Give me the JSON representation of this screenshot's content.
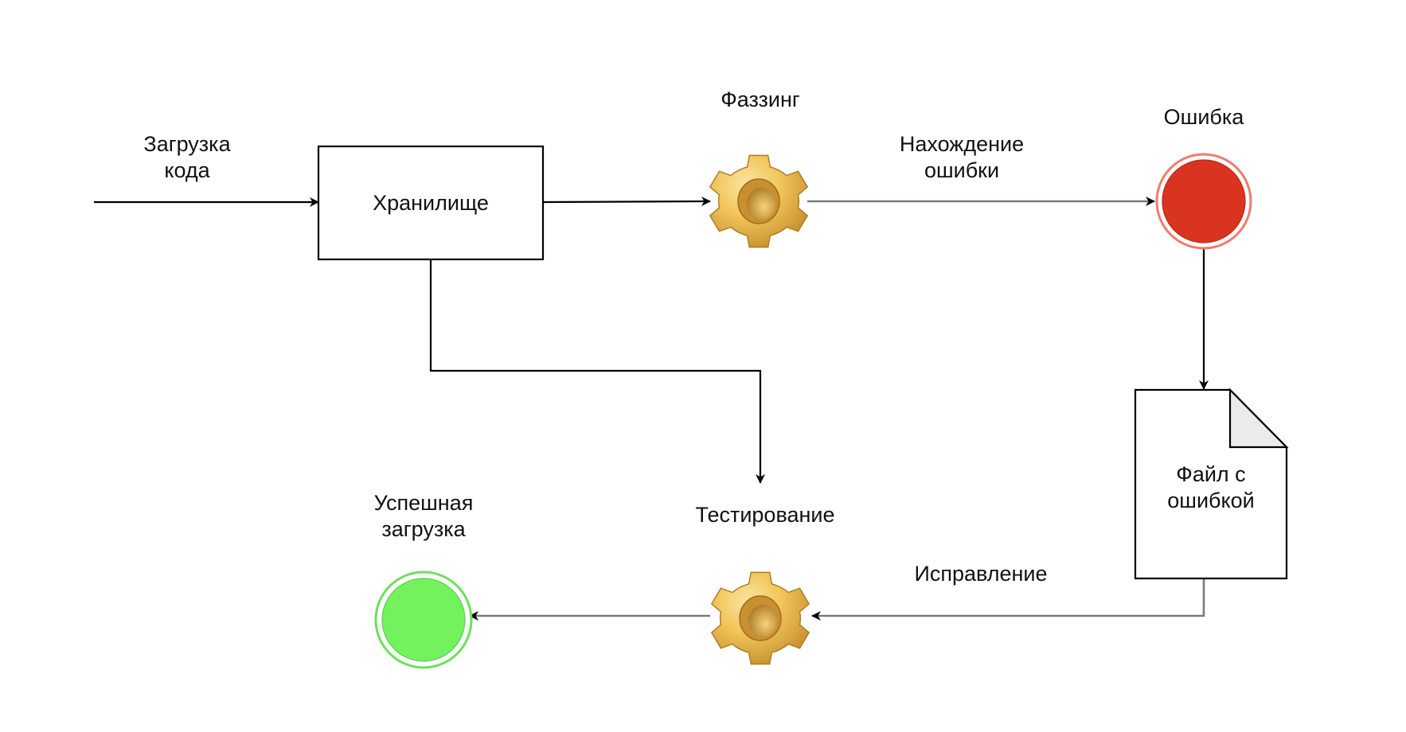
{
  "labels": {
    "upload_line1": "Загрузка",
    "upload_line2": "кода",
    "storage": "Хранилище",
    "fuzzing": "Фаззинг",
    "finding_line1": "Нахождение",
    "finding_line2": "ошибки",
    "error": "Ошибка",
    "file_line1": "Файл с",
    "file_line2": "ошибкой",
    "fix": "Исправление",
    "testing": "Тестирование",
    "success_line1": "Успешная",
    "success_line2": "загрузка"
  },
  "colors": {
    "error_fill": "#d9341f",
    "error_ring": "#f07a70",
    "success_fill": "#74f25e",
    "success_ring": "#6de05a",
    "gear_light": "#f6d070",
    "gear_mid": "#e5b443",
    "gear_dark": "#b9832a",
    "file_fold": "#ebebeb"
  },
  "icons": {
    "fuzzing": "gear-icon",
    "testing": "gear-icon"
  }
}
